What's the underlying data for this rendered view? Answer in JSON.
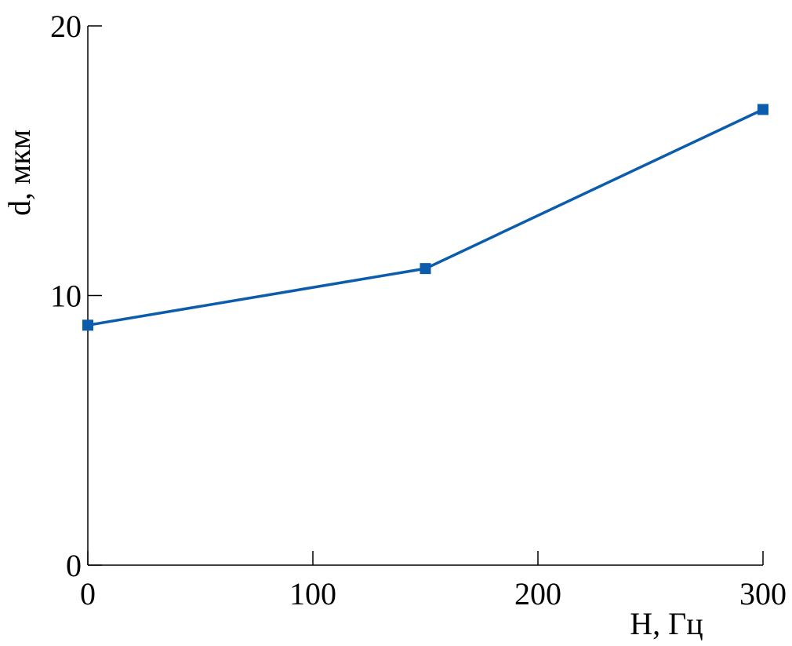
{
  "chart_data": {
    "type": "line",
    "x_label": "H, Гц",
    "y_label": "d, мкм",
    "x": [
      0,
      150,
      300
    ],
    "series": [
      {
        "color": "#0b5cad",
        "values": [
          8.9,
          11.0,
          16.9
        ]
      }
    ],
    "xlim": [
      0,
      300
    ],
    "xticks": [
      0,
      100,
      200,
      300
    ],
    "ylim": [
      0,
      20
    ],
    "yticks": [
      0,
      10,
      20
    ],
    "grid": false
  }
}
